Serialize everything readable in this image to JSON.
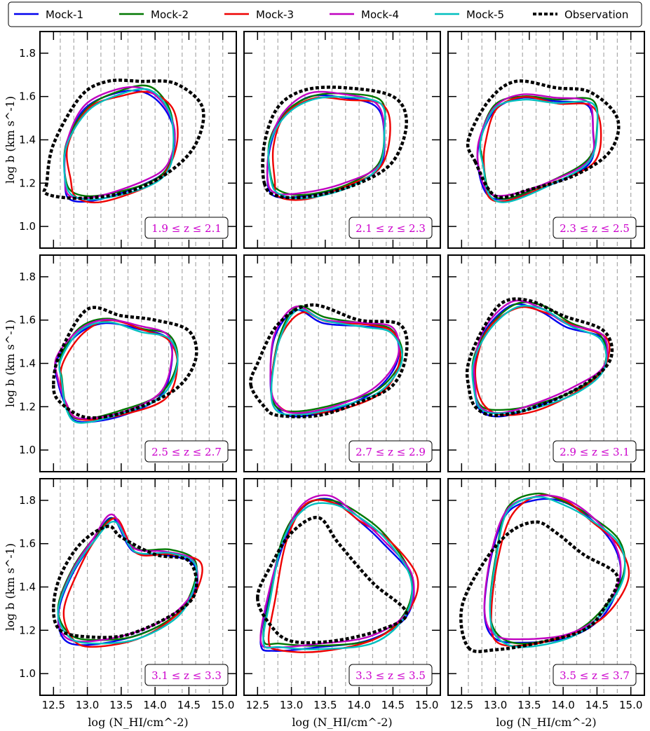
{
  "chart_data": {
    "type": "line",
    "layout": "3x3 grid",
    "xlabel": "log (N_HI/cm^-2)",
    "ylabel": "log b (km s^-1)",
    "xlim": [
      12.3,
      15.2
    ],
    "ylim": [
      0.9,
      1.9
    ],
    "xticks": [
      "12.5",
      "13.0",
      "13.5",
      "14.0",
      "14.5",
      "15.0"
    ],
    "yticks": [
      "1.0",
      "1.2",
      "1.4",
      "1.6",
      "1.8"
    ],
    "grid": "vertical dashed lines every 0.2 in x",
    "legend_placement": "top, single row",
    "legend": [
      {
        "name": "Mock-1",
        "color": "#0000ee",
        "style": "solid"
      },
      {
        "name": "Mock-2",
        "color": "#007700",
        "style": "solid"
      },
      {
        "name": "Mock-3",
        "color": "#ee0000",
        "style": "solid"
      },
      {
        "name": "Mock-4",
        "color": "#c000c0",
        "style": "solid"
      },
      {
        "name": "Mock-5",
        "color": "#00bfbf",
        "style": "solid"
      },
      {
        "name": "Observation",
        "color": "#000000",
        "style": "dotted"
      }
    ],
    "label_color": "#cc00cc",
    "panels": [
      {
        "label": "1.9 ≤ z ≤ 2.1",
        "observation": [
          [
            12.4,
            1.2
          ],
          [
            12.4,
            1.15
          ],
          [
            12.9,
            1.13
          ],
          [
            13.6,
            1.16
          ],
          [
            14.2,
            1.25
          ],
          [
            14.6,
            1.38
          ],
          [
            14.7,
            1.55
          ],
          [
            14.3,
            1.66
          ],
          [
            13.8,
            1.67
          ],
          [
            13.3,
            1.67
          ],
          [
            12.9,
            1.6
          ],
          [
            12.5,
            1.38
          ]
        ],
        "mocks": [
          [
            12.7,
            1.22
          ],
          [
            12.8,
            1.14
          ],
          [
            13.2,
            1.13
          ],
          [
            13.9,
            1.2
          ],
          [
            14.2,
            1.28
          ],
          [
            14.3,
            1.42
          ],
          [
            14.2,
            1.55
          ],
          [
            13.9,
            1.63
          ],
          [
            13.5,
            1.62
          ],
          [
            13.0,
            1.55
          ],
          [
            12.7,
            1.38
          ]
        ]
      },
      {
        "label": "2.1 ≤ z ≤ 2.3",
        "observation": [
          [
            12.6,
            1.2
          ],
          [
            12.8,
            1.14
          ],
          [
            13.3,
            1.14
          ],
          [
            14.0,
            1.2
          ],
          [
            14.5,
            1.3
          ],
          [
            14.7,
            1.48
          ],
          [
            14.5,
            1.6
          ],
          [
            13.8,
            1.64
          ],
          [
            13.2,
            1.63
          ],
          [
            12.8,
            1.55
          ],
          [
            12.6,
            1.38
          ]
        ],
        "mocks": [
          [
            12.7,
            1.22
          ],
          [
            12.8,
            1.15
          ],
          [
            13.2,
            1.14
          ],
          [
            13.8,
            1.19
          ],
          [
            14.3,
            1.28
          ],
          [
            14.4,
            1.45
          ],
          [
            14.3,
            1.57
          ],
          [
            13.8,
            1.6
          ],
          [
            13.3,
            1.6
          ],
          [
            12.9,
            1.52
          ],
          [
            12.7,
            1.38
          ]
        ]
      },
      {
        "label": "2.3 ≤ z ≤ 2.5",
        "observation": [
          [
            12.7,
            1.3
          ],
          [
            13.0,
            1.14
          ],
          [
            13.5,
            1.17
          ],
          [
            14.2,
            1.24
          ],
          [
            14.7,
            1.35
          ],
          [
            14.8,
            1.5
          ],
          [
            14.4,
            1.62
          ],
          [
            13.9,
            1.64
          ],
          [
            13.3,
            1.67
          ],
          [
            12.9,
            1.58
          ],
          [
            12.6,
            1.4
          ]
        ],
        "mocks": [
          [
            12.8,
            1.28
          ],
          [
            12.9,
            1.15
          ],
          [
            13.2,
            1.13
          ],
          [
            13.8,
            1.2
          ],
          [
            14.4,
            1.3
          ],
          [
            14.5,
            1.45
          ],
          [
            14.4,
            1.57
          ],
          [
            13.9,
            1.58
          ],
          [
            13.4,
            1.6
          ],
          [
            13.0,
            1.55
          ],
          [
            12.8,
            1.4
          ]
        ]
      },
      {
        "label": "2.5 ≤ z ≤ 2.7",
        "observation": [
          [
            12.5,
            1.3
          ],
          [
            12.6,
            1.22
          ],
          [
            13.0,
            1.15
          ],
          [
            13.6,
            1.18
          ],
          [
            14.3,
            1.28
          ],
          [
            14.6,
            1.42
          ],
          [
            14.5,
            1.55
          ],
          [
            14.0,
            1.6
          ],
          [
            13.5,
            1.62
          ],
          [
            13.0,
            1.65
          ],
          [
            12.6,
            1.45
          ]
        ],
        "mocks": [
          [
            12.6,
            1.32
          ],
          [
            12.7,
            1.2
          ],
          [
            12.9,
            1.14
          ],
          [
            13.5,
            1.17
          ],
          [
            14.1,
            1.25
          ],
          [
            14.3,
            1.4
          ],
          [
            14.2,
            1.52
          ],
          [
            13.8,
            1.56
          ],
          [
            13.3,
            1.6
          ],
          [
            12.9,
            1.55
          ],
          [
            12.6,
            1.42
          ]
        ]
      },
      {
        "label": "2.7 ≤ z ≤ 2.9",
        "observation": [
          [
            12.4,
            1.3
          ],
          [
            12.6,
            1.2
          ],
          [
            12.8,
            1.16
          ],
          [
            13.4,
            1.16
          ],
          [
            14.0,
            1.22
          ],
          [
            14.5,
            1.3
          ],
          [
            14.7,
            1.45
          ],
          [
            14.6,
            1.58
          ],
          [
            14.0,
            1.6
          ],
          [
            13.3,
            1.67
          ],
          [
            12.8,
            1.58
          ],
          [
            12.5,
            1.4
          ]
        ],
        "mocks": [
          [
            12.7,
            1.3
          ],
          [
            12.8,
            1.2
          ],
          [
            13.1,
            1.17
          ],
          [
            13.7,
            1.2
          ],
          [
            14.3,
            1.28
          ],
          [
            14.6,
            1.42
          ],
          [
            14.5,
            1.55
          ],
          [
            14.1,
            1.58
          ],
          [
            13.5,
            1.6
          ],
          [
            13.1,
            1.65
          ],
          [
            12.8,
            1.52
          ]
        ]
      },
      {
        "label": "2.9 ≤ z ≤ 3.1",
        "observation": [
          [
            12.6,
            1.3
          ],
          [
            12.7,
            1.2
          ],
          [
            13.0,
            1.16
          ],
          [
            13.6,
            1.2
          ],
          [
            14.3,
            1.3
          ],
          [
            14.7,
            1.42
          ],
          [
            14.6,
            1.55
          ],
          [
            14.0,
            1.62
          ],
          [
            13.5,
            1.69
          ],
          [
            13.1,
            1.68
          ],
          [
            12.8,
            1.55
          ],
          [
            12.6,
            1.4
          ]
        ],
        "mocks": [
          [
            12.7,
            1.3
          ],
          [
            12.8,
            1.2
          ],
          [
            13.1,
            1.17
          ],
          [
            13.6,
            1.2
          ],
          [
            14.2,
            1.28
          ],
          [
            14.6,
            1.38
          ],
          [
            14.6,
            1.52
          ],
          [
            14.1,
            1.58
          ],
          [
            13.7,
            1.65
          ],
          [
            13.3,
            1.67
          ],
          [
            12.9,
            1.57
          ],
          [
            12.7,
            1.42
          ]
        ]
      },
      {
        "label": "3.1 ≤ z ≤ 3.3",
        "observation": [
          [
            12.5,
            1.3
          ],
          [
            12.6,
            1.2
          ],
          [
            13.0,
            1.17
          ],
          [
            13.6,
            1.18
          ],
          [
            14.3,
            1.28
          ],
          [
            14.6,
            1.38
          ],
          [
            14.5,
            1.52
          ],
          [
            14.0,
            1.55
          ],
          [
            13.5,
            1.63
          ],
          [
            13.3,
            1.68
          ],
          [
            12.9,
            1.6
          ],
          [
            12.6,
            1.45
          ]
        ],
        "mocks": [
          [
            12.6,
            1.3
          ],
          [
            12.7,
            1.18
          ],
          [
            13.0,
            1.14
          ],
          [
            13.7,
            1.17
          ],
          [
            14.3,
            1.27
          ],
          [
            14.6,
            1.4
          ],
          [
            14.6,
            1.52
          ],
          [
            14.2,
            1.56
          ],
          [
            13.7,
            1.57
          ],
          [
            13.4,
            1.72
          ],
          [
            13.1,
            1.62
          ],
          [
            12.8,
            1.47
          ]
        ]
      },
      {
        "label": "3.3 ≤ z ≤ 3.5",
        "observation": [
          [
            12.5,
            1.35
          ],
          [
            12.7,
            1.22
          ],
          [
            13.0,
            1.15
          ],
          [
            13.6,
            1.15
          ],
          [
            14.3,
            1.2
          ],
          [
            14.7,
            1.28
          ],
          [
            14.2,
            1.42
          ],
          [
            13.7,
            1.6
          ],
          [
            13.4,
            1.72
          ],
          [
            13.0,
            1.65
          ],
          [
            12.7,
            1.5
          ]
        ],
        "mocks": [
          [
            12.6,
            1.15
          ],
          [
            12.8,
            1.12
          ],
          [
            13.4,
            1.12
          ],
          [
            14.2,
            1.16
          ],
          [
            14.7,
            1.28
          ],
          [
            14.8,
            1.45
          ],
          [
            14.4,
            1.62
          ],
          [
            14.0,
            1.72
          ],
          [
            13.6,
            1.8
          ],
          [
            13.2,
            1.78
          ],
          [
            12.9,
            1.62
          ],
          [
            12.7,
            1.35
          ]
        ]
      },
      {
        "label": "3.5 ≤ z ≤ 3.7",
        "observation": [
          [
            12.6,
            1.12
          ],
          [
            13.0,
            1.11
          ],
          [
            13.6,
            1.14
          ],
          [
            14.3,
            1.2
          ],
          [
            14.6,
            1.3
          ],
          [
            14.8,
            1.45
          ],
          [
            14.3,
            1.55
          ],
          [
            13.9,
            1.65
          ],
          [
            13.6,
            1.7
          ],
          [
            13.2,
            1.65
          ],
          [
            12.8,
            1.5
          ],
          [
            12.5,
            1.3
          ]
        ],
        "mocks": [
          [
            12.9,
            1.3
          ],
          [
            13.0,
            1.17
          ],
          [
            13.4,
            1.14
          ],
          [
            14.1,
            1.18
          ],
          [
            14.6,
            1.28
          ],
          [
            14.9,
            1.45
          ],
          [
            14.8,
            1.6
          ],
          [
            14.4,
            1.72
          ],
          [
            14.0,
            1.8
          ],
          [
            13.6,
            1.82
          ],
          [
            13.2,
            1.75
          ],
          [
            13.0,
            1.55
          ]
        ]
      }
    ]
  }
}
